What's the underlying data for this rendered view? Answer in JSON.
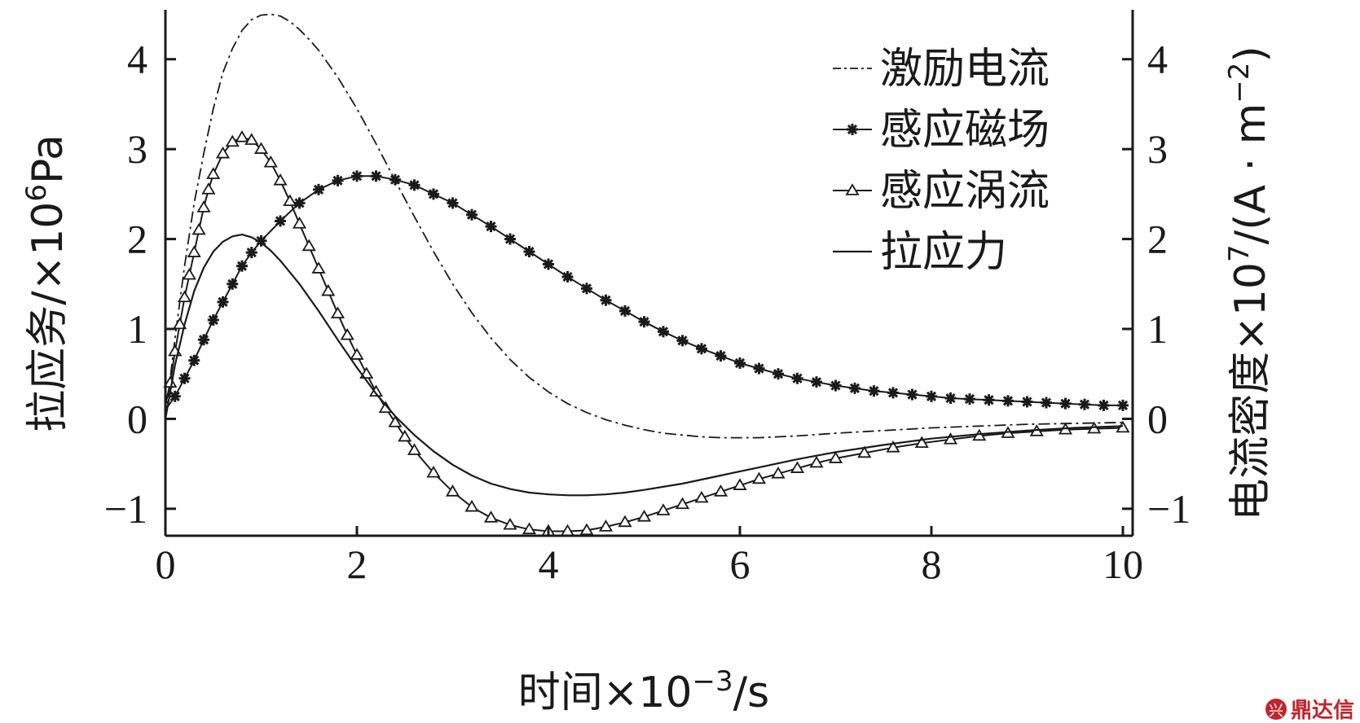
{
  "chart_data": {
    "type": "line",
    "xlabel_prefix": "时间×10",
    "xlabel_exp": "−3",
    "xlabel_suffix": "/s",
    "ylabel_left_prefix": "拉应务/×10",
    "ylabel_left_exp": "6",
    "ylabel_left_suffix": "Pa",
    "ylabel_right_prefix": "电流密度×10",
    "ylabel_right_exp": "7",
    "ylabel_right_mid": "/(A · m",
    "ylabel_right_exp2": "−2",
    "ylabel_right_end": ")",
    "xlim": [
      0,
      10
    ],
    "ylim": [
      -1.3,
      4.55
    ],
    "x_ticks": [
      0,
      2,
      4,
      6,
      8,
      10
    ],
    "x_tick_labels": [
      "0",
      "2",
      "4",
      "6",
      "8",
      "10"
    ],
    "y_ticks": [
      -1,
      0,
      1,
      2,
      3,
      4
    ],
    "y_tick_labels": [
      "−1",
      "0",
      "1",
      "2",
      "3",
      "4"
    ],
    "grid": false,
    "legend_position": "top-right",
    "series": [
      {
        "name": "激励电流",
        "style": "dash-dot",
        "x": [
          0,
          0.1,
          0.2,
          0.3,
          0.4,
          0.5,
          0.6,
          0.7,
          0.8,
          0.9,
          1.0,
          1.1,
          1.2,
          1.3,
          1.4,
          1.5,
          1.6,
          1.8,
          2.0,
          2.2,
          2.4,
          2.6,
          2.8,
          3.0,
          3.2,
          3.4,
          3.6,
          3.8,
          4.0,
          4.2,
          4.4,
          4.6,
          4.8,
          5.0,
          5.2,
          5.4,
          5.6,
          5.8,
          6.0,
          6.2,
          6.4,
          6.6,
          7.0,
          7.5,
          8.0,
          8.5,
          9.0,
          9.5,
          10.0
        ],
        "y": [
          0,
          0.9,
          1.7,
          2.4,
          2.95,
          3.45,
          3.85,
          4.12,
          4.32,
          4.44,
          4.49,
          4.5,
          4.48,
          4.42,
          4.33,
          4.22,
          4.1,
          3.8,
          3.45,
          3.06,
          2.65,
          2.25,
          1.86,
          1.5,
          1.18,
          0.9,
          0.66,
          0.46,
          0.3,
          0.17,
          0.07,
          -0.01,
          -0.07,
          -0.12,
          -0.16,
          -0.18,
          -0.2,
          -0.21,
          -0.21,
          -0.21,
          -0.2,
          -0.19,
          -0.16,
          -0.13,
          -0.1,
          -0.08,
          -0.06,
          -0.05,
          -0.04
        ]
      },
      {
        "name": "感应磁场",
        "style": "star-marker",
        "x": [
          0,
          0.1,
          0.2,
          0.3,
          0.4,
          0.5,
          0.6,
          0.7,
          0.8,
          0.9,
          1.0,
          1.2,
          1.4,
          1.6,
          1.8,
          2.0,
          2.2,
          2.4,
          2.6,
          2.8,
          3.0,
          3.2,
          3.4,
          3.6,
          3.8,
          4.0,
          4.2,
          4.4,
          4.6,
          4.8,
          5.0,
          5.2,
          5.4,
          5.6,
          5.8,
          6.0,
          6.2,
          6.4,
          6.6,
          6.8,
          7.0,
          7.2,
          7.4,
          7.6,
          7.8,
          8.0,
          8.2,
          8.4,
          8.6,
          8.8,
          9.0,
          9.2,
          9.4,
          9.6,
          9.8,
          10.0
        ],
        "y": [
          0.1,
          0.25,
          0.45,
          0.65,
          0.88,
          1.1,
          1.3,
          1.5,
          1.7,
          1.85,
          1.98,
          2.2,
          2.4,
          2.55,
          2.65,
          2.7,
          2.7,
          2.66,
          2.6,
          2.5,
          2.4,
          2.27,
          2.14,
          2.0,
          1.86,
          1.72,
          1.58,
          1.45,
          1.32,
          1.2,
          1.08,
          0.97,
          0.87,
          0.78,
          0.7,
          0.62,
          0.56,
          0.5,
          0.45,
          0.41,
          0.37,
          0.34,
          0.31,
          0.29,
          0.27,
          0.25,
          0.23,
          0.22,
          0.21,
          0.2,
          0.19,
          0.18,
          0.17,
          0.16,
          0.15,
          0.15
        ]
      },
      {
        "name": "感应涡流",
        "style": "triangle-marker",
        "x": [
          0,
          0.05,
          0.1,
          0.15,
          0.2,
          0.25,
          0.3,
          0.35,
          0.4,
          0.45,
          0.5,
          0.6,
          0.7,
          0.8,
          0.9,
          1.0,
          1.1,
          1.2,
          1.3,
          1.4,
          1.5,
          1.6,
          1.7,
          1.8,
          1.9,
          2.0,
          2.1,
          2.2,
          2.3,
          2.4,
          2.5,
          2.6,
          2.8,
          3.0,
          3.2,
          3.4,
          3.6,
          3.8,
          4.0,
          4.2,
          4.4,
          4.6,
          4.8,
          5.0,
          5.2,
          5.4,
          5.6,
          5.8,
          6.0,
          6.2,
          6.4,
          6.6,
          6.8,
          7.0,
          7.3,
          7.6,
          7.9,
          8.2,
          8.5,
          8.8,
          9.1,
          9.4,
          9.7,
          10.0
        ],
        "y": [
          0.15,
          0.4,
          0.75,
          1.05,
          1.35,
          1.6,
          1.85,
          2.1,
          2.35,
          2.55,
          2.72,
          2.95,
          3.08,
          3.13,
          3.1,
          3.0,
          2.85,
          2.65,
          2.42,
          2.17,
          1.92,
          1.67,
          1.42,
          1.17,
          0.93,
          0.71,
          0.5,
          0.3,
          0.12,
          -0.04,
          -0.2,
          -0.35,
          -0.6,
          -0.81,
          -0.98,
          -1.1,
          -1.18,
          -1.23,
          -1.25,
          -1.25,
          -1.24,
          -1.2,
          -1.15,
          -1.09,
          -1.02,
          -0.95,
          -0.88,
          -0.81,
          -0.74,
          -0.67,
          -0.61,
          -0.55,
          -0.49,
          -0.44,
          -0.38,
          -0.32,
          -0.27,
          -0.23,
          -0.19,
          -0.16,
          -0.14,
          -0.12,
          -0.11,
          -0.1
        ]
      },
      {
        "name": "拉应力",
        "style": "solid",
        "x": [
          0,
          0.1,
          0.2,
          0.3,
          0.4,
          0.5,
          0.6,
          0.7,
          0.8,
          0.9,
          1.0,
          1.1,
          1.2,
          1.4,
          1.6,
          1.8,
          2.0,
          2.2,
          2.4,
          2.6,
          2.8,
          3.0,
          3.2,
          3.4,
          3.6,
          3.8,
          4.0,
          4.2,
          4.4,
          4.6,
          4.8,
          5.0,
          5.4,
          5.8,
          6.2,
          6.6,
          7.0,
          7.5,
          8.0,
          8.5,
          9.0,
          9.5,
          10.0
        ],
        "y": [
          0,
          0.6,
          1.05,
          1.42,
          1.68,
          1.86,
          1.97,
          2.03,
          2.05,
          2.02,
          1.96,
          1.87,
          1.76,
          1.5,
          1.2,
          0.88,
          0.57,
          0.28,
          0.03,
          -0.18,
          -0.36,
          -0.51,
          -0.63,
          -0.72,
          -0.78,
          -0.82,
          -0.84,
          -0.85,
          -0.85,
          -0.84,
          -0.82,
          -0.79,
          -0.72,
          -0.63,
          -0.54,
          -0.45,
          -0.37,
          -0.29,
          -0.22,
          -0.17,
          -0.13,
          -0.1,
          -0.08
        ]
      }
    ]
  },
  "watermark": {
    "logo_letter": "兴",
    "text": "鼎达信"
  }
}
